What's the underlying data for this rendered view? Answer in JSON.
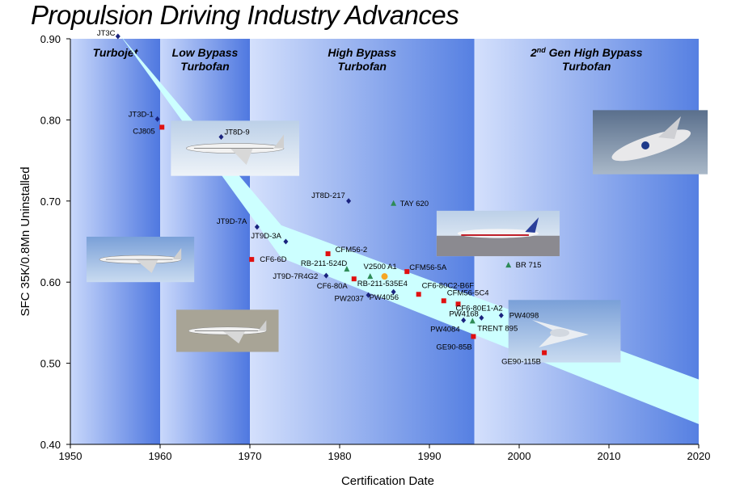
{
  "title": "Propulsion Driving Industry Advances",
  "chart_data": {
    "type": "scatter",
    "title": "Propulsion Driving Industry Advances",
    "xlabel": "Certification Date",
    "ylabel": "SFC 35K/0.8Mn Uninstalled",
    "xlim": [
      1950,
      2020
    ],
    "ylim": [
      0.4,
      0.9
    ],
    "x_ticks": [
      "1950",
      "1960",
      "1970",
      "1980",
      "1990",
      "2000",
      "2010",
      "2020"
    ],
    "y_ticks": [
      "0.40",
      "0.50",
      "0.60",
      "0.70",
      "0.80",
      "0.90"
    ],
    "eras": [
      {
        "label": "Turbojet",
        "x0": 1950,
        "x1": 1960
      },
      {
        "label": "Low Bypass\nTurbofan",
        "x0": 1960,
        "x1": 1970
      },
      {
        "label": "High Bypass\nTurbofan",
        "x0": 1970,
        "x1": 1995
      },
      {
        "label": "2nd Gen High Bypass\nTurbofan",
        "x0": 1995,
        "x1": 2020
      }
    ],
    "band_upper": [
      [
        1955.5,
        0.905
      ],
      [
        1973.5,
        0.67
      ],
      [
        2020,
        0.48
      ]
    ],
    "band_lower": [
      [
        1955.5,
        0.905
      ],
      [
        1973.5,
        0.63
      ],
      [
        2020,
        0.425
      ]
    ],
    "series": [
      {
        "marker": "diamond",
        "color": "#1a237e",
        "points": [
          {
            "x": 1955.3,
            "y": 0.903,
            "label": "JT3C"
          },
          {
            "x": 1959.7,
            "y": 0.801,
            "label": "JT3D-1"
          },
          {
            "x": 1966.8,
            "y": 0.779,
            "label": "JT8D-9"
          },
          {
            "x": 1981.0,
            "y": 0.7,
            "label": "JT8D-217"
          },
          {
            "x": 1970.8,
            "y": 0.668,
            "label": "JT9D-7A"
          },
          {
            "x": 1974.0,
            "y": 0.65,
            "label": "JT9D-3A"
          },
          {
            "x": 1978.5,
            "y": 0.608,
            "label": "JT9D-7R4G2"
          },
          {
            "x": 1983.2,
            "y": 0.584,
            "label": "PW2037"
          },
          {
            "x": 1986.0,
            "y": 0.588,
            "label": "PW4056"
          },
          {
            "x": 1995.8,
            "y": 0.556,
            "label": "PW4168"
          },
          {
            "x": 1998.0,
            "y": 0.559,
            "label": "PW4098"
          },
          {
            "x": 1993.8,
            "y": 0.553,
            "label": "PW4084"
          }
        ]
      },
      {
        "marker": "square",
        "color": "#e01010",
        "points": [
          {
            "x": 1960.2,
            "y": 0.791,
            "label": "CJ805"
          },
          {
            "x": 1970.2,
            "y": 0.628,
            "label": "CF6-6D"
          },
          {
            "x": 1978.7,
            "y": 0.635,
            "label": "CFM56-2"
          },
          {
            "x": 1987.5,
            "y": 0.613,
            "label": "CFM56-5A"
          },
          {
            "x": 1981.6,
            "y": 0.604,
            "label": "CF6-80A"
          },
          {
            "x": 1988.8,
            "y": 0.585,
            "label": "CF6-80C2-B6F"
          },
          {
            "x": 1991.6,
            "y": 0.577,
            "label": "CFM56-5C4"
          },
          {
            "x": 1993.2,
            "y": 0.573,
            "label": "CF6-80E1-A2"
          },
          {
            "x": 1994.9,
            "y": 0.533,
            "label": "GE90-85B"
          },
          {
            "x": 2002.8,
            "y": 0.513,
            "label": "GE90-115B"
          }
        ]
      },
      {
        "marker": "triangle",
        "color": "#2e8b57",
        "points": [
          {
            "x": 1986.0,
            "y": 0.697,
            "label": "TAY 620"
          },
          {
            "x": 1998.8,
            "y": 0.621,
            "label": "BR 715"
          },
          {
            "x": 1980.8,
            "y": 0.616,
            "label": "RB-211-524D"
          },
          {
            "x": 1983.4,
            "y": 0.607,
            "label": "RB-211-535E4"
          },
          {
            "x": 1994.8,
            "y": 0.552,
            "label": "TRENT 895"
          }
        ]
      },
      {
        "marker": "circle",
        "color": "#f5a623",
        "points": [
          {
            "x": 1985.0,
            "y": 0.607,
            "label": "V2500 A1"
          }
        ]
      }
    ]
  },
  "images": [
    {
      "name": "boeing-747-photo",
      "x0": 1961.2,
      "y0": 0.799,
      "x1": 1975.5,
      "y1": 0.731
    },
    {
      "name": "dc8-jet-photo",
      "x0": 1951.8,
      "y0": 0.656,
      "x1": 1963.8,
      "y1": 0.6
    },
    {
      "name": "boeing-727-photo",
      "x0": 1961.8,
      "y0": 0.566,
      "x1": 1973.2,
      "y1": 0.514
    },
    {
      "name": "boeing-777-photo",
      "x0": 1990.8,
      "y0": 0.688,
      "x1": 2004.5,
      "y1": 0.632
    },
    {
      "name": "space-plane-photo",
      "x0": 2008.2,
      "y0": 0.812,
      "x1": 2021.0,
      "y1": 0.733
    },
    {
      "name": "blended-wing-photo",
      "x0": 1998.8,
      "y0": 0.578,
      "x1": 2011.3,
      "y1": 0.501
    }
  ]
}
